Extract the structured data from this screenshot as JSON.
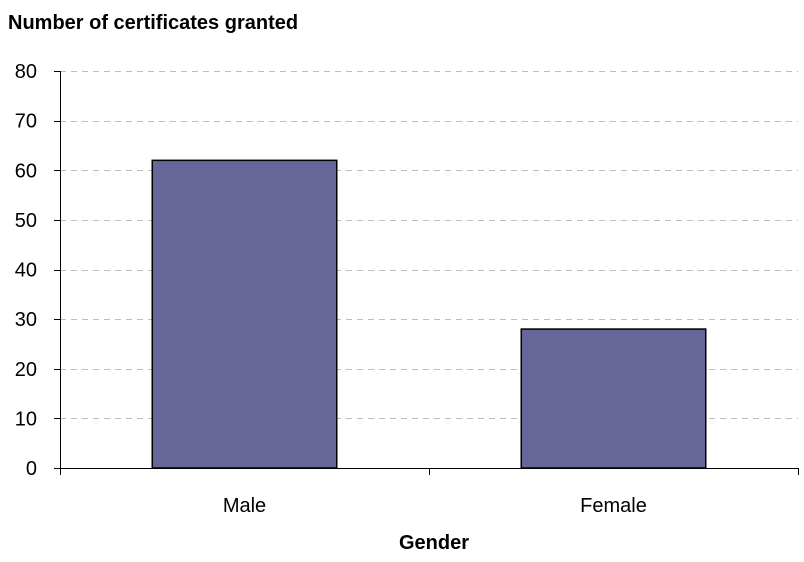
{
  "chart_data": {
    "type": "bar",
    "title": "Number of certificates granted",
    "xlabel": "Gender",
    "ylabel": "",
    "categories": [
      "Male",
      "Female"
    ],
    "values": [
      62,
      28
    ],
    "ylim": [
      0,
      80
    ],
    "yticks": [
      0,
      10,
      20,
      30,
      40,
      50,
      60,
      70,
      80
    ],
    "grid": true,
    "bar_color": "#666699",
    "legend": "none"
  }
}
